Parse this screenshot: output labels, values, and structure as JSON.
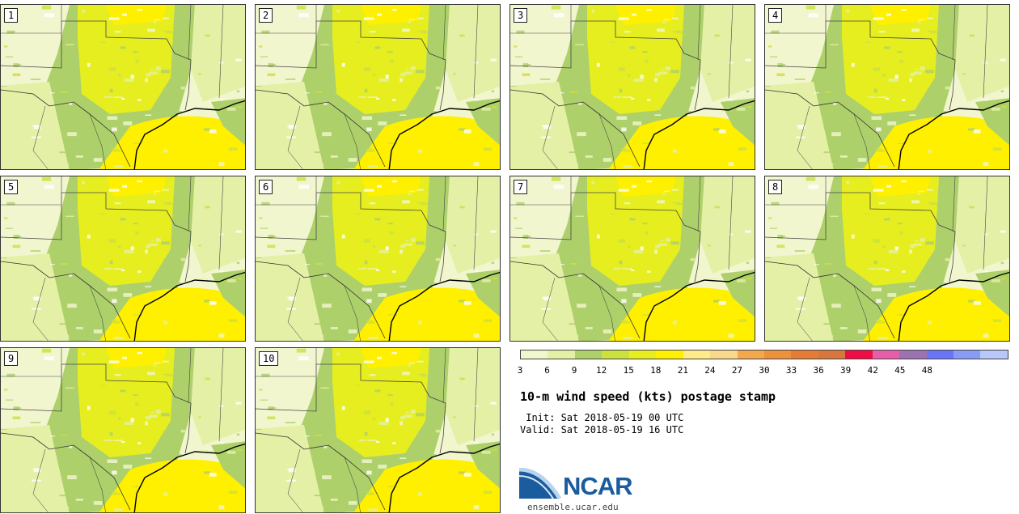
{
  "panels": [
    {
      "label": "1"
    },
    {
      "label": "2"
    },
    {
      "label": "3"
    },
    {
      "label": "4"
    },
    {
      "label": "5"
    },
    {
      "label": "6"
    },
    {
      "label": "7"
    },
    {
      "label": "8"
    },
    {
      "label": "9"
    },
    {
      "label": "10"
    }
  ],
  "colorbar": {
    "colors": [
      "#f2f6cf",
      "#e4f0a6",
      "#aed06b",
      "#cce040",
      "#e6ee20",
      "#fff000",
      "#feeb8a",
      "#f8d88b",
      "#f3a84e",
      "#ec923c",
      "#e47c35",
      "#d7773e",
      "#f00c44",
      "#e45fa8",
      "#9a73b0",
      "#6a74f4",
      "#889cf6",
      "#b8c8f8"
    ],
    "ticks": [
      "3",
      "6",
      "9",
      "12",
      "15",
      "18",
      "21",
      "24",
      "27",
      "30",
      "33",
      "36",
      "39",
      "42",
      "45",
      "48"
    ]
  },
  "title": "10-m wind speed (kts) postage stamp",
  "init": " Init: Sat 2018-05-19 00 UTC",
  "valid": "Valid: Sat 2018-05-19 16 UTC",
  "logo": {
    "name": "NCAR",
    "url": "ensemble.ucar.edu"
  }
}
